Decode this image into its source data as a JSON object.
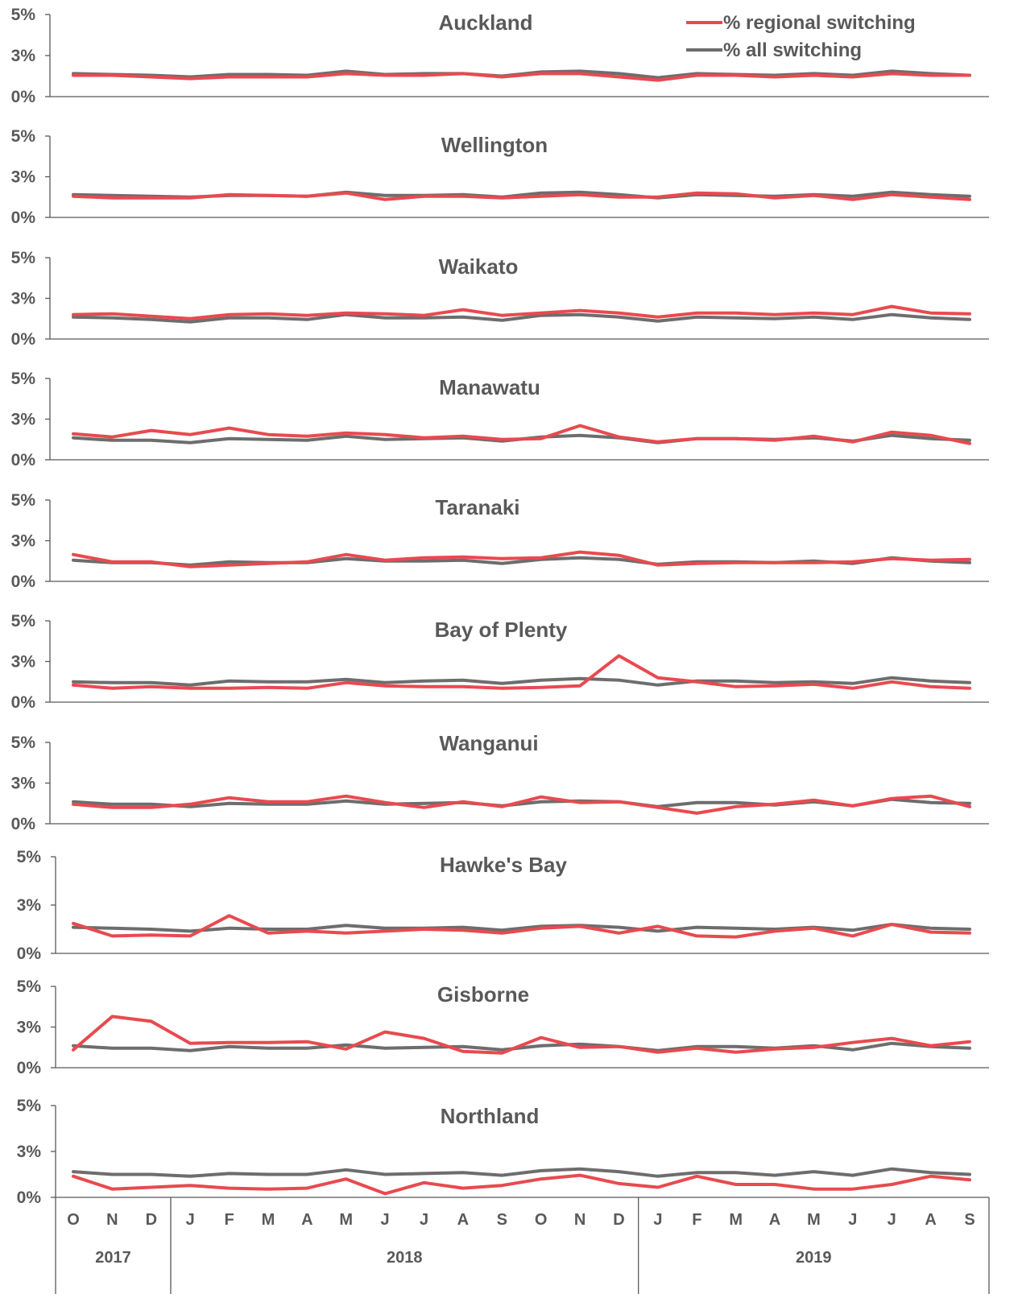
{
  "legend": {
    "placement": "top-right",
    "regional_label": "% regional switching",
    "all_label": "% all switching"
  },
  "colors": {
    "regional": "#e84a4f",
    "all": "#6d6d6d",
    "axis": "#595959",
    "text": "#595959"
  },
  "months": [
    "O",
    "N",
    "D",
    "J",
    "F",
    "M",
    "A",
    "M",
    "J",
    "J",
    "A",
    "S",
    "O",
    "N",
    "D",
    "J",
    "F",
    "M",
    "A",
    "M",
    "J",
    "J",
    "A",
    "S"
  ],
  "years": [
    {
      "label": "2017",
      "start": 0,
      "end": 3
    },
    {
      "label": "2018",
      "start": 3,
      "end": 15
    },
    {
      "label": "2019",
      "start": 15,
      "end": 24
    }
  ],
  "y_ticks": [
    {
      "value": 0,
      "label": "0%"
    },
    {
      "value": 2.5,
      "label": "3%"
    },
    {
      "value": 5,
      "label": "5%"
    }
  ],
  "chart_data": [
    {
      "type": "line",
      "title": "Auckland",
      "ylim": [
        0,
        5
      ],
      "series": [
        {
          "name": "% regional switching",
          "values": [
            1.3,
            1.3,
            1.2,
            1.1,
            1.2,
            1.2,
            1.2,
            1.4,
            1.3,
            1.3,
            1.4,
            1.2,
            1.4,
            1.4,
            1.2,
            1.0,
            1.3,
            1.3,
            1.2,
            1.3,
            1.2,
            1.4,
            1.3,
            1.3
          ]
        },
        {
          "name": "% all switching",
          "values": [
            1.4,
            1.35,
            1.3,
            1.2,
            1.35,
            1.35,
            1.3,
            1.55,
            1.35,
            1.4,
            1.4,
            1.25,
            1.5,
            1.55,
            1.4,
            1.15,
            1.4,
            1.35,
            1.3,
            1.4,
            1.3,
            1.55,
            1.4,
            1.3
          ]
        }
      ]
    },
    {
      "type": "line",
      "title": "Wellington",
      "ylim": [
        0,
        5
      ],
      "series": [
        {
          "name": "% regional switching",
          "values": [
            1.3,
            1.2,
            1.2,
            1.2,
            1.4,
            1.35,
            1.3,
            1.5,
            1.1,
            1.3,
            1.3,
            1.2,
            1.3,
            1.4,
            1.25,
            1.25,
            1.5,
            1.45,
            1.2,
            1.35,
            1.1,
            1.4,
            1.25,
            1.1
          ]
        },
        {
          "name": "% all switching",
          "values": [
            1.4,
            1.35,
            1.3,
            1.25,
            1.35,
            1.35,
            1.3,
            1.55,
            1.35,
            1.35,
            1.4,
            1.25,
            1.5,
            1.55,
            1.4,
            1.2,
            1.4,
            1.35,
            1.3,
            1.4,
            1.3,
            1.55,
            1.4,
            1.3
          ]
        }
      ]
    },
    {
      "type": "line",
      "title": "Waikato",
      "ylim": [
        0,
        5
      ],
      "series": [
        {
          "name": "% regional switching",
          "values": [
            1.5,
            1.55,
            1.4,
            1.25,
            1.5,
            1.55,
            1.45,
            1.6,
            1.55,
            1.45,
            1.8,
            1.45,
            1.6,
            1.75,
            1.6,
            1.35,
            1.6,
            1.6,
            1.5,
            1.6,
            1.5,
            2.0,
            1.6,
            1.55
          ]
        },
        {
          "name": "% all switching",
          "values": [
            1.35,
            1.3,
            1.2,
            1.05,
            1.3,
            1.3,
            1.2,
            1.5,
            1.3,
            1.3,
            1.35,
            1.15,
            1.45,
            1.5,
            1.35,
            1.1,
            1.35,
            1.3,
            1.25,
            1.35,
            1.2,
            1.5,
            1.3,
            1.2
          ]
        }
      ]
    },
    {
      "type": "line",
      "title": "Manawatu",
      "ylim": [
        0,
        5
      ],
      "series": [
        {
          "name": "% regional switching",
          "values": [
            1.6,
            1.4,
            1.8,
            1.55,
            1.95,
            1.55,
            1.45,
            1.65,
            1.55,
            1.35,
            1.45,
            1.25,
            1.3,
            2.1,
            1.4,
            1.1,
            1.3,
            1.3,
            1.2,
            1.45,
            1.1,
            1.7,
            1.5,
            1.0
          ]
        },
        {
          "name": "% all switching",
          "values": [
            1.35,
            1.2,
            1.2,
            1.05,
            1.3,
            1.25,
            1.2,
            1.45,
            1.25,
            1.3,
            1.35,
            1.15,
            1.4,
            1.5,
            1.35,
            1.05,
            1.3,
            1.3,
            1.25,
            1.35,
            1.15,
            1.5,
            1.3,
            1.2
          ]
        }
      ]
    },
    {
      "type": "line",
      "title": "Taranaki",
      "ylim": [
        0,
        5
      ],
      "series": [
        {
          "name": "% regional switching",
          "values": [
            1.65,
            1.2,
            1.2,
            0.9,
            1.0,
            1.1,
            1.2,
            1.65,
            1.3,
            1.45,
            1.5,
            1.4,
            1.45,
            1.8,
            1.6,
            1.0,
            1.1,
            1.15,
            1.15,
            1.15,
            1.2,
            1.4,
            1.3,
            1.35
          ]
        },
        {
          "name": "% all switching",
          "values": [
            1.3,
            1.15,
            1.15,
            1.0,
            1.2,
            1.15,
            1.15,
            1.4,
            1.25,
            1.25,
            1.3,
            1.1,
            1.35,
            1.45,
            1.35,
            1.05,
            1.2,
            1.2,
            1.15,
            1.25,
            1.1,
            1.45,
            1.25,
            1.15
          ]
        }
      ]
    },
    {
      "type": "line",
      "title": "Bay of Plenty",
      "ylim": [
        0,
        5
      ],
      "series": [
        {
          "name": "% regional switching",
          "values": [
            1.05,
            0.85,
            0.95,
            0.85,
            0.85,
            0.9,
            0.85,
            1.2,
            1.0,
            0.95,
            0.95,
            0.85,
            0.9,
            1.0,
            2.85,
            1.5,
            1.25,
            0.95,
            1.0,
            1.1,
            0.85,
            1.25,
            0.95,
            0.85
          ]
        },
        {
          "name": "% all switching",
          "values": [
            1.25,
            1.2,
            1.2,
            1.05,
            1.3,
            1.25,
            1.25,
            1.4,
            1.2,
            1.3,
            1.35,
            1.15,
            1.35,
            1.45,
            1.35,
            1.05,
            1.3,
            1.3,
            1.2,
            1.25,
            1.15,
            1.5,
            1.3,
            1.2
          ]
        }
      ]
    },
    {
      "type": "line",
      "title": "Wanganui",
      "ylim": [
        0,
        5
      ],
      "series": [
        {
          "name": "% regional switching",
          "values": [
            1.2,
            1.0,
            1.0,
            1.2,
            1.6,
            1.35,
            1.35,
            1.7,
            1.3,
            1.0,
            1.35,
            1.05,
            1.65,
            1.3,
            1.35,
            1.0,
            0.65,
            1.05,
            1.2,
            1.45,
            1.1,
            1.55,
            1.7,
            1.05
          ]
        },
        {
          "name": "% all switching",
          "values": [
            1.35,
            1.2,
            1.2,
            1.05,
            1.25,
            1.2,
            1.2,
            1.4,
            1.2,
            1.25,
            1.3,
            1.1,
            1.35,
            1.4,
            1.35,
            1.05,
            1.3,
            1.3,
            1.15,
            1.35,
            1.1,
            1.5,
            1.3,
            1.25
          ]
        }
      ]
    },
    {
      "type": "line",
      "title": "Hawke's Bay",
      "ylim": [
        0,
        5
      ],
      "series": [
        {
          "name": "% regional switching",
          "values": [
            1.55,
            0.9,
            0.95,
            0.9,
            1.95,
            1.05,
            1.15,
            1.05,
            1.15,
            1.25,
            1.2,
            1.05,
            1.3,
            1.4,
            1.05,
            1.4,
            0.9,
            0.85,
            1.15,
            1.3,
            0.9,
            1.5,
            1.1,
            1.05
          ]
        },
        {
          "name": "% all switching",
          "values": [
            1.35,
            1.3,
            1.25,
            1.15,
            1.3,
            1.25,
            1.25,
            1.45,
            1.3,
            1.3,
            1.35,
            1.2,
            1.4,
            1.45,
            1.35,
            1.15,
            1.35,
            1.3,
            1.25,
            1.35,
            1.2,
            1.5,
            1.3,
            1.25
          ]
        }
      ]
    },
    {
      "type": "line",
      "title": "Gisborne",
      "ylim": [
        0,
        5
      ],
      "series": [
        {
          "name": "% regional switching",
          "values": [
            1.1,
            3.15,
            2.85,
            1.5,
            1.55,
            1.55,
            1.6,
            1.15,
            2.2,
            1.8,
            1.0,
            0.9,
            1.85,
            1.25,
            1.3,
            0.95,
            1.2,
            0.95,
            1.15,
            1.25,
            1.55,
            1.8,
            1.35,
            1.6
          ]
        },
        {
          "name": "% all switching",
          "values": [
            1.35,
            1.2,
            1.2,
            1.05,
            1.3,
            1.2,
            1.2,
            1.4,
            1.2,
            1.25,
            1.3,
            1.1,
            1.35,
            1.45,
            1.3,
            1.05,
            1.3,
            1.3,
            1.2,
            1.35,
            1.1,
            1.5,
            1.3,
            1.2
          ]
        }
      ]
    },
    {
      "type": "line",
      "title": "Northland",
      "ylim": [
        0,
        5
      ],
      "series": [
        {
          "name": "% regional switching",
          "values": [
            1.15,
            0.45,
            0.55,
            0.65,
            0.5,
            0.45,
            0.5,
            1.0,
            0.2,
            0.8,
            0.5,
            0.65,
            1.0,
            1.2,
            0.75,
            0.55,
            1.15,
            0.7,
            0.7,
            0.45,
            0.45,
            0.7,
            1.15,
            0.95
          ]
        },
        {
          "name": "% all switching",
          "values": [
            1.4,
            1.25,
            1.25,
            1.15,
            1.3,
            1.25,
            1.25,
            1.5,
            1.25,
            1.3,
            1.35,
            1.2,
            1.45,
            1.55,
            1.4,
            1.15,
            1.35,
            1.35,
            1.2,
            1.4,
            1.2,
            1.55,
            1.35,
            1.25
          ]
        }
      ]
    }
  ]
}
